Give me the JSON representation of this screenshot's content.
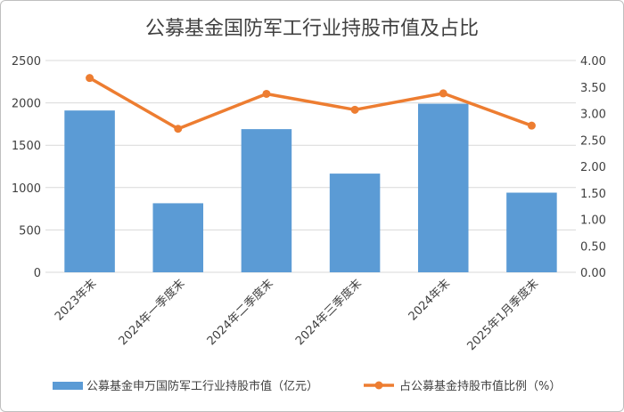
{
  "chart_data": {
    "type": "bar+line",
    "title": "公募基金国防军工行业持股市值及占比",
    "categories": [
      "2023年末",
      "2024年一季度末",
      "2024年二季度末",
      "2024年三季度末",
      "2024年末",
      "2025年1月季度末"
    ],
    "series": [
      {
        "name": "公募基金申万国防军工行业持股市值（亿元）",
        "type": "bar",
        "axis": "left",
        "color": "#5B9BD5",
        "values": [
          1910,
          815,
          1690,
          1165,
          1990,
          940
        ]
      },
      {
        "name": "占公募基金持股市值比例（%）",
        "type": "line",
        "axis": "right",
        "color": "#ED7D31",
        "values": [
          3.67,
          2.71,
          3.37,
          3.07,
          3.38,
          2.77
        ]
      }
    ],
    "ylim_left": [
      0,
      2500
    ],
    "yticks_left": [
      "0",
      "500",
      "1000",
      "1500",
      "2000",
      "2500"
    ],
    "ylim_right": [
      0,
      4
    ],
    "yticks_right": [
      "0.00",
      "0.50",
      "1.00",
      "1.50",
      "2.00",
      "2.50",
      "3.00",
      "3.50",
      "4.00"
    ],
    "grid": true,
    "legend": "bottom"
  }
}
